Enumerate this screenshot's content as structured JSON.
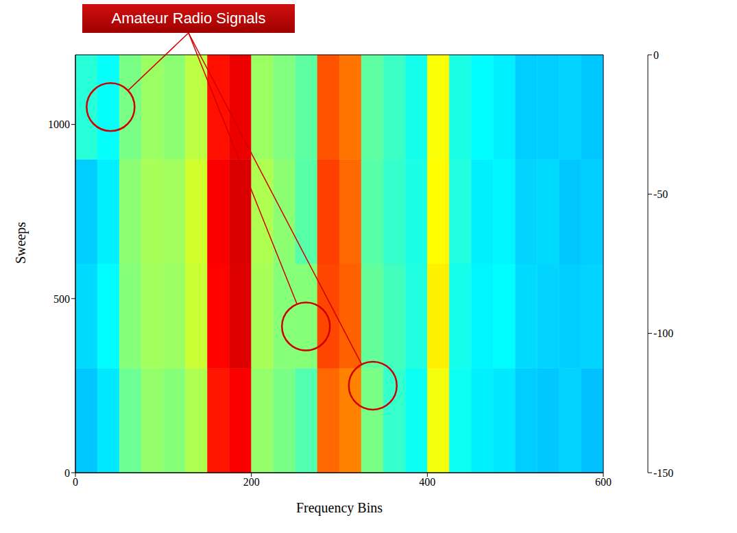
{
  "chart_data": {
    "type": "heatmap",
    "x_label": "Frequency Bins",
    "y_label": "Sweeps",
    "xlim": [
      0,
      600
    ],
    "xticks": [
      0,
      200,
      400,
      600
    ],
    "ylim": [
      0,
      1200
    ],
    "yticks": [
      0,
      500,
      1000
    ],
    "x_edges": [
      0,
      25,
      50,
      75,
      100,
      125,
      150,
      175,
      200,
      225,
      250,
      275,
      300,
      325,
      350,
      375,
      400,
      425,
      450,
      475,
      500,
      525,
      550,
      575,
      600
    ],
    "y_edges": [
      0,
      300,
      600,
      900,
      1200
    ],
    "cells": [
      [
        -102,
        -97,
        -78,
        -72,
        -74,
        -68,
        -22,
        -18,
        -72,
        -76,
        -82,
        -34,
        -38,
        -76,
        -86,
        -92,
        -58,
        -92,
        -96,
        -97,
        -101,
        -102,
        -100,
        -103
      ],
      [
        -99,
        -94,
        -74,
        -70,
        -71,
        -64,
        -19,
        -14,
        -69,
        -74,
        -74,
        -29,
        -33,
        -79,
        -84,
        -89,
        -54,
        -91,
        -95,
        -94,
        -99,
        -100,
        -101,
        -100
      ],
      [
        -101,
        -96,
        -73,
        -69,
        -70,
        -63,
        -18,
        -13,
        -68,
        -73,
        -81,
        -28,
        -34,
        -81,
        -86,
        -90,
        -56,
        -89,
        -96,
        -95,
        -100,
        -99,
        -102,
        -101
      ],
      [
        -88,
        -93,
        -76,
        -71,
        -73,
        -66,
        -21,
        -16,
        -71,
        -75,
        -80,
        -31,
        -36,
        -80,
        -85,
        -91,
        -57,
        -90,
        -94,
        -96,
        -101,
        -101,
        -100,
        -102
      ]
    ],
    "colorbar": {
      "range": [
        -150,
        0
      ],
      "ticks": [
        -150,
        -100,
        -50,
        0
      ]
    },
    "annotation": {
      "text": "Amateur Radio Signals",
      "points": [
        {
          "x": 40,
          "y": 1050
        },
        {
          "x": 262,
          "y": 420
        },
        {
          "x": 338,
          "y": 250
        }
      ]
    }
  }
}
